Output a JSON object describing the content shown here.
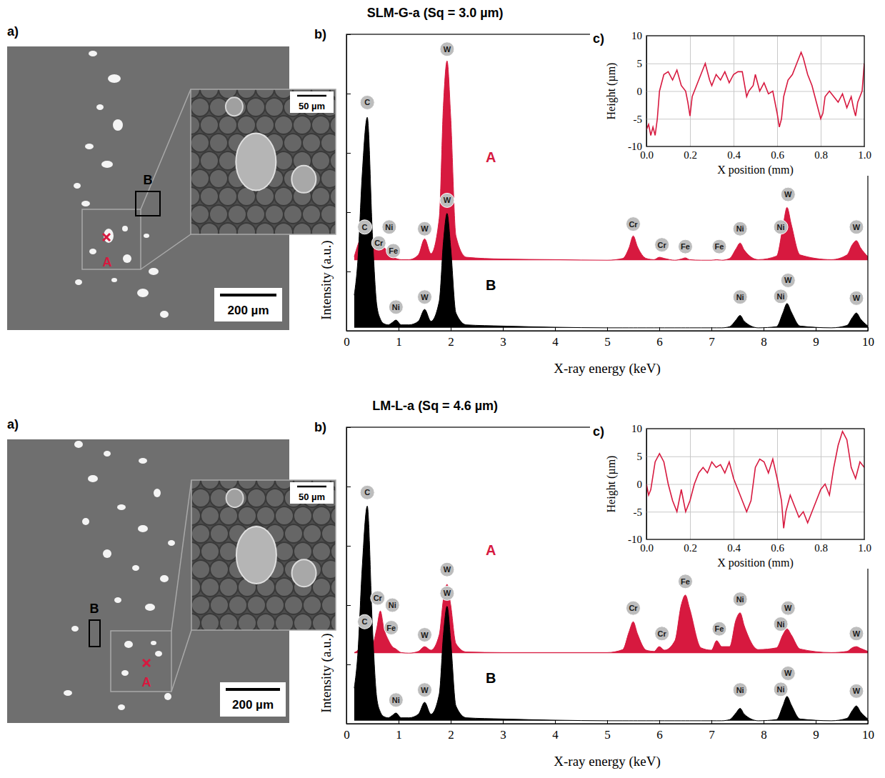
{
  "images": [
    {
      "panel": "a)",
      "scale_bar": "200 µm",
      "inset_scale_bar": "50 µm",
      "points": [
        "A",
        "B"
      ]
    },
    {
      "panel": "a)",
      "scale_bar": "200 µm",
      "inset_scale_bar": "50 µm",
      "points": [
        "A",
        "B"
      ]
    }
  ],
  "chart_data": [
    {
      "type": "area",
      "panel": "b)",
      "title": "SLM-G-a (Sq = 3.0 µm)",
      "x_label": "X-ray energy (keV)",
      "y_label": "Intensity (a.u.)",
      "xlim": [
        0,
        10
      ],
      "xticks": [
        0,
        1,
        2,
        3,
        4,
        5,
        6,
        7,
        8,
        9,
        10
      ],
      "ylim": [
        0,
        5
      ],
      "yticks": [
        0,
        1,
        2,
        3,
        4,
        5
      ],
      "tick_labels": "x",
      "x": [
        0.15,
        0.22,
        0.3,
        0.4,
        0.5,
        0.58,
        0.65,
        0.72,
        0.8,
        0.88,
        0.95,
        1.05,
        1.2,
        1.38,
        1.5,
        1.62,
        1.78,
        1.86,
        1.93,
        2.0,
        2.1,
        2.3,
        3.0,
        4.0,
        5.0,
        5.3,
        5.42,
        5.5,
        5.58,
        5.75,
        5.9,
        6.0,
        6.1,
        6.3,
        6.42,
        6.5,
        6.58,
        6.8,
        7.0,
        7.1,
        7.2,
        7.35,
        7.47,
        7.55,
        7.63,
        7.9,
        8.25,
        8.37,
        8.45,
        8.53,
        8.7,
        9.3,
        9.6,
        9.7,
        9.78,
        9.86,
        10.0
      ],
      "series": [
        {
          "name": "A",
          "color": "#d7193f",
          "values": [
            1.25,
            1.45,
            1.62,
            1.72,
            1.5,
            1.38,
            1.36,
            1.4,
            1.32,
            1.25,
            1.22,
            1.2,
            1.2,
            1.28,
            1.55,
            1.3,
            1.9,
            3.8,
            4.55,
            3.6,
            1.6,
            1.24,
            1.21,
            1.2,
            1.19,
            1.22,
            1.4,
            1.6,
            1.42,
            1.22,
            1.2,
            1.24,
            1.22,
            1.19,
            1.21,
            1.23,
            1.2,
            1.19,
            1.19,
            1.2,
            1.19,
            1.22,
            1.38,
            1.48,
            1.36,
            1.2,
            1.26,
            1.75,
            2.08,
            1.8,
            1.28,
            1.2,
            1.28,
            1.45,
            1.52,
            1.4,
            1.25
          ]
        },
        {
          "name": "B",
          "color": "#000000",
          "values": [
            0.6,
            1.2,
            2.6,
            3.6,
            1.6,
            0.45,
            0.2,
            0.12,
            0.1,
            0.14,
            0.18,
            0.1,
            0.1,
            0.16,
            0.36,
            0.16,
            0.5,
            1.5,
            1.98,
            1.4,
            0.3,
            0.1,
            0.08,
            0.06,
            0.05,
            0.05,
            0.05,
            0.05,
            0.05,
            0.05,
            0.05,
            0.05,
            0.05,
            0.05,
            0.05,
            0.05,
            0.05,
            0.05,
            0.05,
            0.05,
            0.05,
            0.07,
            0.18,
            0.26,
            0.16,
            0.05,
            0.07,
            0.3,
            0.46,
            0.32,
            0.08,
            0.05,
            0.09,
            0.22,
            0.3,
            0.2,
            0.08
          ]
        }
      ],
      "annotations": [
        {
          "text": "C",
          "x": 0.4,
          "y": 3.85
        },
        {
          "text": "C",
          "x": 0.35,
          "y": 1.75
        },
        {
          "text": "Cr",
          "x": 0.62,
          "y": 1.48
        },
        {
          "text": "Ni",
          "x": 0.82,
          "y": 1.75
        },
        {
          "text": "Fe",
          "x": 0.9,
          "y": 1.35
        },
        {
          "text": "W",
          "x": 1.5,
          "y": 1.72
        },
        {
          "text": "W",
          "x": 1.93,
          "y": 4.75
        },
        {
          "text": "Cr",
          "x": 5.5,
          "y": 1.8
        },
        {
          "text": "Cr",
          "x": 6.05,
          "y": 1.45
        },
        {
          "text": "Fe",
          "x": 6.5,
          "y": 1.42
        },
        {
          "text": "Fe",
          "x": 7.15,
          "y": 1.42
        },
        {
          "text": "Ni",
          "x": 7.55,
          "y": 1.72
        },
        {
          "text": "Ni",
          "x": 8.33,
          "y": 1.75
        },
        {
          "text": "W",
          "x": 8.47,
          "y": 2.3
        },
        {
          "text": "W",
          "x": 9.78,
          "y": 1.75
        },
        {
          "text": "Ni",
          "x": 0.95,
          "y": 0.4
        },
        {
          "text": "W",
          "x": 1.5,
          "y": 0.57
        },
        {
          "text": "W",
          "x": 1.93,
          "y": 2.2
        },
        {
          "text": "Ni",
          "x": 7.55,
          "y": 0.57
        },
        {
          "text": "Ni",
          "x": 8.33,
          "y": 0.58
        },
        {
          "text": "W",
          "x": 8.47,
          "y": 0.85
        },
        {
          "text": "W",
          "x": 9.78,
          "y": 0.55
        }
      ]
    },
    {
      "type": "line",
      "panel": "c)",
      "x_label": "X position (mm)",
      "y_label": "Height (µm)",
      "xlim": [
        0,
        1
      ],
      "xticks": [
        {
          "value": 0,
          "label": "0.0"
        },
        0.2,
        0.4,
        0.6,
        0.8,
        {
          "value": 1,
          "label": "1.0"
        }
      ],
      "ylim": [
        -10,
        10
      ],
      "yticks": [
        -10,
        -5,
        0,
        5,
        10
      ],
      "grid": true,
      "x": [
        0,
        0.01,
        0.02,
        0.03,
        0.04,
        0.05,
        0.06,
        0.08,
        0.1,
        0.12,
        0.14,
        0.16,
        0.18,
        0.19,
        0.2,
        0.21,
        0.23,
        0.25,
        0.27,
        0.29,
        0.3,
        0.32,
        0.34,
        0.36,
        0.38,
        0.4,
        0.42,
        0.44,
        0.46,
        0.47,
        0.49,
        0.5,
        0.52,
        0.54,
        0.56,
        0.58,
        0.6,
        0.61,
        0.62,
        0.63,
        0.65,
        0.67,
        0.69,
        0.71,
        0.72,
        0.74,
        0.76,
        0.78,
        0.8,
        0.81,
        0.82,
        0.84,
        0.86,
        0.88,
        0.9,
        0.92,
        0.94,
        0.95,
        0.96,
        0.97,
        0.98,
        0.99,
        1.0
      ],
      "series": [
        {
          "color": "#d7193f",
          "values": [
            -7,
            -6,
            -8,
            -6.5,
            -8,
            -5,
            0,
            3,
            3.5,
            2,
            3.8,
            1,
            0,
            -2,
            -4.5,
            -1,
            1,
            3,
            5,
            2,
            1,
            3,
            2,
            3.5,
            1.5,
            3,
            3.5,
            3.5,
            -1,
            0,
            1,
            3,
            0,
            1.5,
            -0.5,
            0,
            -4,
            -6.5,
            -5,
            -1,
            2,
            3,
            5,
            7,
            6,
            3,
            1,
            -2,
            -5,
            -4,
            -1,
            0,
            -1,
            -2,
            -0.5,
            -3,
            -1,
            -3,
            -4.5,
            -2,
            -1,
            0,
            5
          ]
        }
      ]
    },
    {
      "type": "area",
      "panel": "b)",
      "title": "LM-L-a (Sq = 4.6 µm)",
      "x_label": "X-ray energy (keV)",
      "y_label": "Intensity (a.u.)",
      "xlim": [
        0,
        10
      ],
      "xticks": [
        0,
        1,
        2,
        3,
        4,
        5,
        6,
        7,
        8,
        9,
        10
      ],
      "ylim": [
        0,
        5
      ],
      "yticks": [
        0,
        1,
        2,
        3,
        4,
        5
      ],
      "tick_labels": "x",
      "x": [
        0.15,
        0.22,
        0.3,
        0.4,
        0.5,
        0.58,
        0.65,
        0.72,
        0.8,
        0.88,
        0.95,
        1.05,
        1.2,
        1.38,
        1.5,
        1.62,
        1.78,
        1.86,
        1.93,
        2.0,
        2.1,
        2.3,
        3.0,
        4.0,
        5.0,
        5.3,
        5.42,
        5.5,
        5.58,
        5.75,
        5.9,
        6.0,
        6.1,
        6.3,
        6.42,
        6.5,
        6.58,
        6.8,
        7.0,
        7.1,
        7.2,
        7.35,
        7.47,
        7.55,
        7.63,
        7.9,
        8.25,
        8.37,
        8.45,
        8.53,
        8.7,
        9.3,
        9.6,
        9.7,
        9.78,
        9.86,
        10.0
      ],
      "series": [
        {
          "name": "A",
          "color": "#d7193f",
          "values": [
            1.2,
            1.24,
            1.35,
            1.46,
            1.35,
            1.6,
            1.9,
            1.6,
            1.42,
            1.3,
            1.26,
            1.2,
            1.19,
            1.22,
            1.3,
            1.24,
            1.5,
            2.1,
            2.35,
            2.0,
            1.35,
            1.21,
            1.2,
            1.2,
            1.2,
            1.25,
            1.55,
            1.72,
            1.52,
            1.24,
            1.22,
            1.3,
            1.24,
            1.4,
            2.0,
            2.17,
            1.95,
            1.28,
            1.24,
            1.4,
            1.3,
            1.3,
            1.75,
            1.87,
            1.65,
            1.25,
            1.28,
            1.5,
            1.6,
            1.5,
            1.26,
            1.2,
            1.22,
            1.28,
            1.3,
            1.27,
            1.22
          ]
        },
        {
          "name": "B",
          "color": "#000000",
          "values": [
            0.6,
            1.2,
            2.6,
            3.67,
            1.6,
            0.45,
            0.2,
            0.12,
            0.1,
            0.14,
            0.18,
            0.1,
            0.1,
            0.16,
            0.36,
            0.16,
            0.5,
            1.5,
            1.98,
            1.4,
            0.3,
            0.1,
            0.08,
            0.06,
            0.05,
            0.05,
            0.05,
            0.05,
            0.05,
            0.05,
            0.05,
            0.05,
            0.05,
            0.05,
            0.05,
            0.05,
            0.05,
            0.05,
            0.05,
            0.05,
            0.05,
            0.07,
            0.18,
            0.26,
            0.16,
            0.05,
            0.07,
            0.3,
            0.46,
            0.32,
            0.08,
            0.05,
            0.09,
            0.22,
            0.3,
            0.2,
            0.08
          ]
        }
      ],
      "annotations": [
        {
          "text": "C",
          "x": 0.4,
          "y": 3.9
        },
        {
          "text": "C",
          "x": 0.35,
          "y": 1.72
        },
        {
          "text": "Cr",
          "x": 0.6,
          "y": 2.12
        },
        {
          "text": "Ni",
          "x": 0.88,
          "y": 2.0
        },
        {
          "text": "Fe",
          "x": 0.86,
          "y": 1.62
        },
        {
          "text": "W",
          "x": 1.5,
          "y": 1.5
        },
        {
          "text": "W",
          "x": 1.93,
          "y": 2.6
        },
        {
          "text": "Cr",
          "x": 5.5,
          "y": 1.95
        },
        {
          "text": "Cr",
          "x": 6.05,
          "y": 1.52
        },
        {
          "text": "Fe",
          "x": 6.5,
          "y": 2.4
        },
        {
          "text": "Fe",
          "x": 7.15,
          "y": 1.6
        },
        {
          "text": "Ni",
          "x": 7.55,
          "y": 2.1
        },
        {
          "text": "Ni",
          "x": 8.33,
          "y": 1.68
        },
        {
          "text": "W",
          "x": 8.47,
          "y": 1.95
        },
        {
          "text": "W",
          "x": 9.78,
          "y": 1.52
        },
        {
          "text": "Ni",
          "x": 0.95,
          "y": 0.4
        },
        {
          "text": "W",
          "x": 1.5,
          "y": 0.57
        },
        {
          "text": "W",
          "x": 1.93,
          "y": 2.2
        },
        {
          "text": "Ni",
          "x": 7.55,
          "y": 0.57
        },
        {
          "text": "Ni",
          "x": 8.33,
          "y": 0.58
        },
        {
          "text": "W",
          "x": 8.47,
          "y": 0.85
        },
        {
          "text": "W",
          "x": 9.78,
          "y": 0.55
        }
      ]
    },
    {
      "type": "line",
      "panel": "c)",
      "x_label": "X position (mm)",
      "y_label": "Height (µm)",
      "xlim": [
        0,
        1
      ],
      "xticks": [
        {
          "value": 0,
          "label": "0.0"
        },
        0.2,
        0.4,
        0.6,
        0.8,
        {
          "value": 1,
          "label": "1.0"
        }
      ],
      "ylim": [
        -10,
        10
      ],
      "yticks": [
        -10,
        -5,
        0,
        5,
        10
      ],
      "grid": true,
      "x": [
        0,
        0.01,
        0.02,
        0.04,
        0.06,
        0.08,
        0.1,
        0.12,
        0.14,
        0.16,
        0.18,
        0.2,
        0.22,
        0.24,
        0.26,
        0.28,
        0.3,
        0.32,
        0.34,
        0.36,
        0.38,
        0.4,
        0.42,
        0.44,
        0.46,
        0.48,
        0.5,
        0.52,
        0.54,
        0.56,
        0.58,
        0.6,
        0.62,
        0.63,
        0.64,
        0.66,
        0.68,
        0.7,
        0.72,
        0.74,
        0.76,
        0.78,
        0.8,
        0.82,
        0.84,
        0.86,
        0.88,
        0.9,
        0.92,
        0.94,
        0.96,
        0.98,
        1.0
      ],
      "series": [
        {
          "color": "#d7193f",
          "values": [
            0,
            -2,
            -1,
            4,
            5.5,
            4,
            0,
            -3,
            -5,
            -1,
            -5,
            -3,
            0,
            2,
            3,
            2,
            4,
            3,
            3.5,
            2,
            4,
            1,
            -1,
            -3,
            -5,
            -3,
            3,
            4.5,
            4,
            2,
            4.5,
            1,
            -3,
            -8,
            -5,
            -2,
            -4,
            -6,
            -5,
            -7,
            -5,
            -3,
            -1,
            0,
            -2,
            3,
            7,
            9.5,
            8,
            3,
            1,
            4,
            3
          ]
        }
      ]
    }
  ]
}
